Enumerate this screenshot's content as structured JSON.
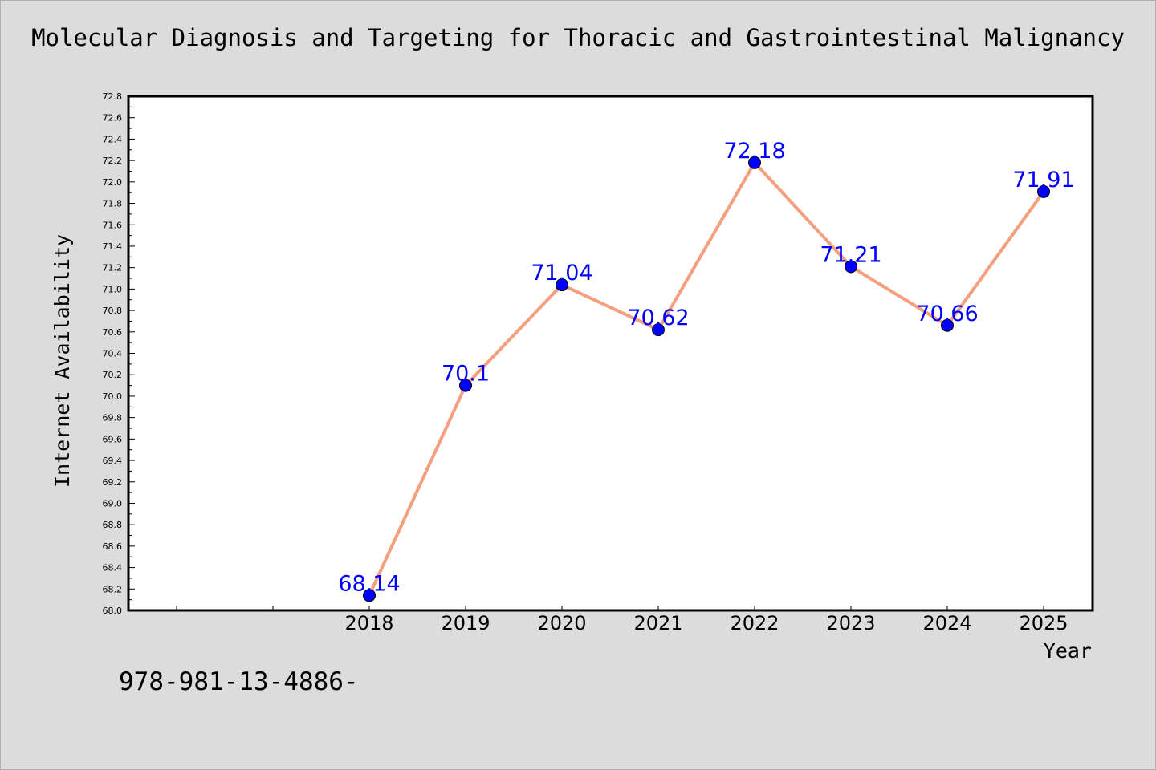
{
  "chart_data": {
    "type": "line",
    "title": "Molecular Diagnosis and Targeting for Thoracic and Gastrointestinal Malignancy",
    "xlabel": "Year",
    "ylabel": "Internet Availability",
    "categories": [
      "2018",
      "2019",
      "2020",
      "2021",
      "2022",
      "2023",
      "2024",
      "2025"
    ],
    "series": [
      {
        "values": [
          68.14,
          70.1,
          71.04,
          70.62,
          72.18,
          71.21,
          70.66,
          71.91
        ]
      }
    ],
    "data_labels": [
      "68.14",
      "70.1",
      "71.04",
      "70.62",
      "72.18",
      "71.21",
      "70.66",
      "71.91"
    ],
    "ylim": [
      68.0,
      72.8
    ],
    "yticks": [
      "68.0",
      "68.2",
      "68.4",
      "68.6",
      "68.8",
      "69.0",
      "69.2",
      "69.4",
      "69.6",
      "69.8",
      "70.0",
      "70.2",
      "70.4",
      "70.6",
      "70.8",
      "71.0",
      "71.2",
      "71.4",
      "71.6",
      "71.8",
      "72.0",
      "72.2",
      "72.4",
      "72.6",
      "72.8"
    ],
    "grid": false,
    "line_color": "#f4a07e",
    "marker_color": "#0000ff",
    "label_color": "#0000ff"
  },
  "footer": {
    "text": "978-981-13-4886-"
  }
}
